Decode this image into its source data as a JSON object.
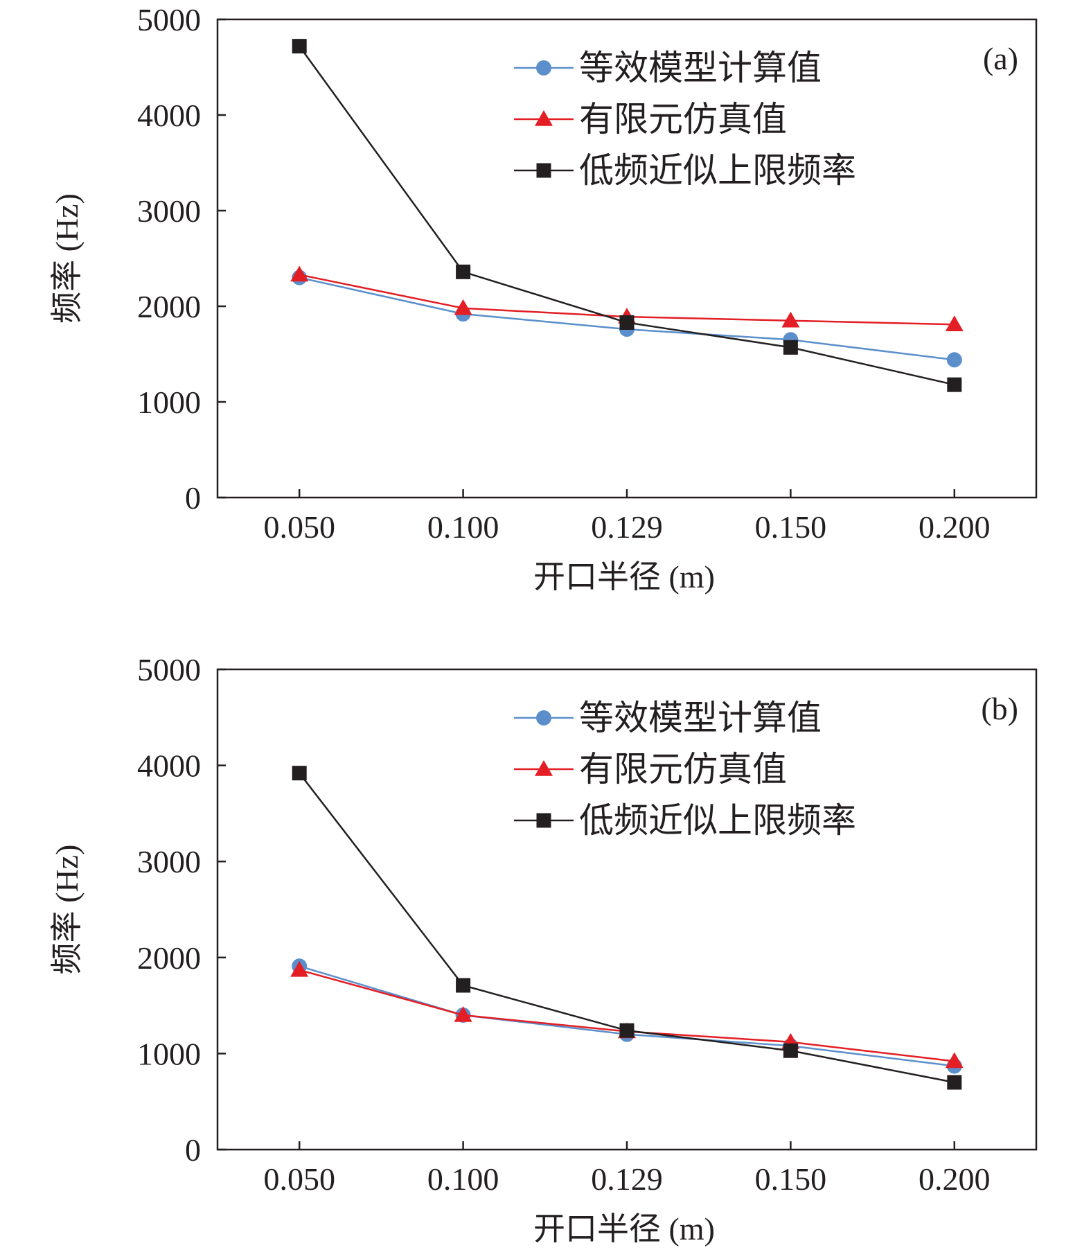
{
  "colors": {
    "axis": "#231f20",
    "series": [
      "#5b8fcb",
      "#e31e24",
      "#231f20"
    ]
  },
  "chart_data": [
    {
      "type": "line",
      "panel_label": "(a)",
      "xlabel": "开口半径 (m)",
      "ylabel": "频率 (Hz)",
      "categories": [
        "0.050",
        "0.100",
        "0.129",
        "0.150",
        "0.200"
      ],
      "ylim": [
        0,
        5000
      ],
      "yticks": [
        "0",
        "1000",
        "2000",
        "3000",
        "4000",
        "5000"
      ],
      "legend_position": "top-right",
      "grid": false,
      "series": [
        {
          "name": "等效模型计算值",
          "marker": "circle",
          "values": [
            2300,
            1920,
            1760,
            1650,
            1440
          ]
        },
        {
          "name": "有限元仿真值",
          "marker": "triangle",
          "values": [
            2330,
            1980,
            1890,
            1850,
            1810
          ]
        },
        {
          "name": "低频近似上限频率",
          "marker": "square",
          "values": [
            4720,
            2360,
            1830,
            1570,
            1180
          ]
        }
      ]
    },
    {
      "type": "line",
      "panel_label": "(b)",
      "xlabel": "开口半径 (m)",
      "ylabel": "频率 (Hz)",
      "categories": [
        "0.050",
        "0.100",
        "0.129",
        "0.150",
        "0.200"
      ],
      "ylim": [
        0,
        5000
      ],
      "yticks": [
        "0",
        "1000",
        "2000",
        "3000",
        "4000",
        "5000"
      ],
      "legend_position": "top-right",
      "grid": false,
      "series": [
        {
          "name": "等效模型计算值",
          "marker": "circle",
          "values": [
            1910,
            1400,
            1200,
            1080,
            870
          ]
        },
        {
          "name": "有限元仿真值",
          "marker": "triangle",
          "values": [
            1870,
            1400,
            1230,
            1120,
            920
          ]
        },
        {
          "name": "低频近似上限频率",
          "marker": "square",
          "values": [
            3920,
            1710,
            1240,
            1030,
            700
          ]
        }
      ]
    }
  ]
}
